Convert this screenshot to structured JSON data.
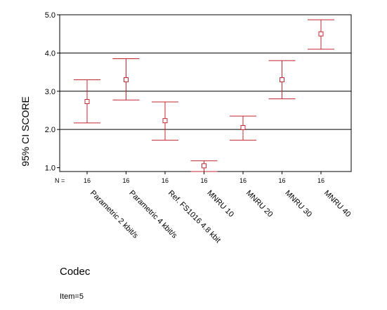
{
  "chart_data": {
    "type": "errorbar",
    "title": "",
    "xlabel": "Codec",
    "ylabel": "95% CI SCORE",
    "ylim": [
      1.0,
      5.0
    ],
    "yticks": [
      "1.0",
      "2.0",
      "3.0",
      "4.0",
      "5.0"
    ],
    "gridlines": [
      2.0,
      3.0,
      4.0
    ],
    "n_label": "N =",
    "categories": [
      "Parametric 2 kbit/s",
      "Parametric 4 kbit/s",
      "Ref. FS1016 4.8 kbit",
      "MNRU 10",
      "MNRU 20",
      "MNRU 30",
      "MNRU 40"
    ],
    "n": [
      "16",
      "16",
      "16",
      "16",
      "16",
      "16",
      "16"
    ],
    "means": [
      2.73,
      3.3,
      2.23,
      1.05,
      2.05,
      3.3,
      4.5
    ],
    "lower": [
      2.17,
      2.77,
      1.72,
      0.9,
      1.72,
      2.8,
      4.1
    ],
    "upper": [
      3.3,
      3.85,
      2.72,
      1.18,
      2.35,
      3.8,
      4.87
    ],
    "color": "#c0282f"
  },
  "footnote": "Item=5"
}
